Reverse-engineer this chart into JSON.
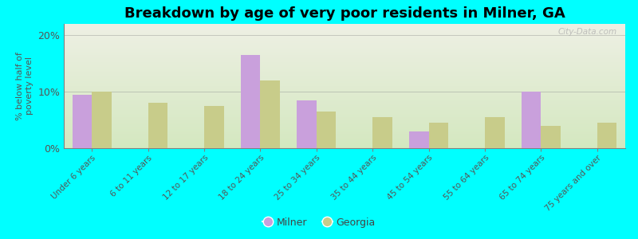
{
  "title": "Breakdown by age of very poor residents in Milner, GA",
  "ylabel": "% below half of\npoverty level",
  "categories": [
    "Under 6 years",
    "6 to 11 years",
    "12 to 17 years",
    "18 to 24 years",
    "25 to 34 years",
    "35 to 44 years",
    "45 to 54 years",
    "55 to 64 years",
    "65 to 74 years",
    "75 years and over"
  ],
  "milner_values": [
    9.5,
    0,
    0,
    16.5,
    8.5,
    0,
    3.0,
    0,
    10.0,
    0
  ],
  "georgia_values": [
    10.0,
    8.0,
    7.5,
    12.0,
    6.5,
    5.5,
    4.5,
    5.5,
    4.0,
    4.5
  ],
  "milner_color": "#c9a0dc",
  "georgia_color": "#c8cc8a",
  "background_color": "#00ffff",
  "plot_bg_top": "#eef0e4",
  "plot_bg_bottom": "#d4e8c0",
  "ylim": [
    0,
    22
  ],
  "yticks": [
    0,
    10,
    20
  ],
  "ytick_labels": [
    "0%",
    "10%",
    "20%"
  ],
  "bar_width": 0.35,
  "title_fontsize": 13,
  "watermark_text": "City-Data.com"
}
